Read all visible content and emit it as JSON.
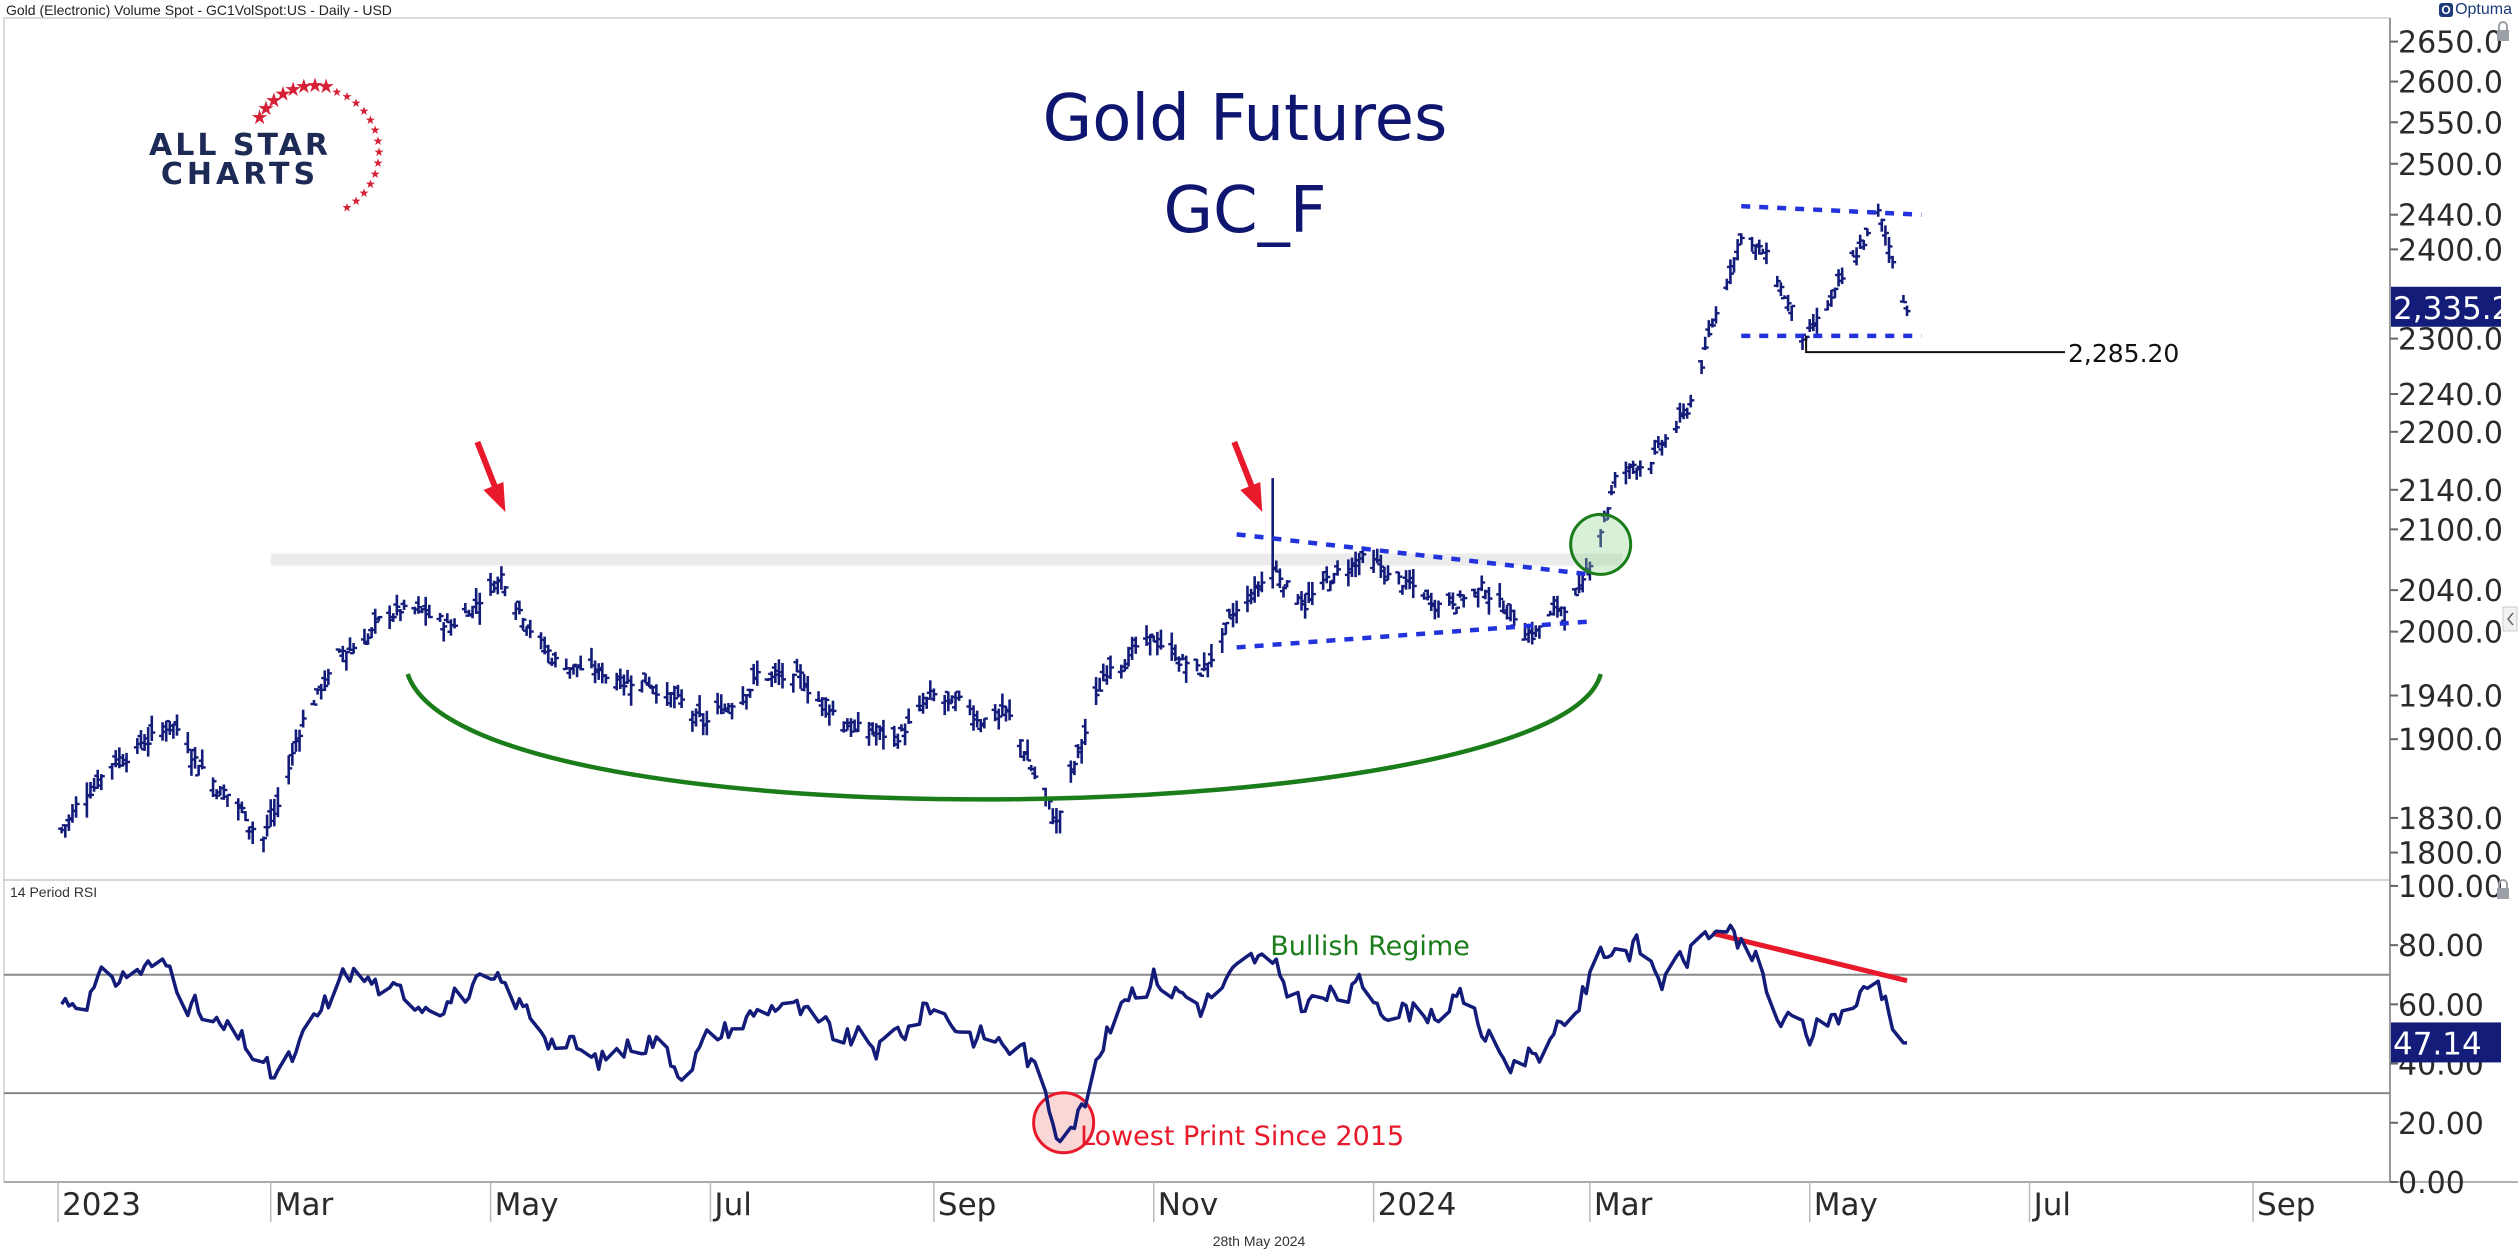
{
  "header": {
    "source": "Gold (Electronic) Volume Spot - GC1VolSpot:US - Daily - USD",
    "brand": "Optuma",
    "date": "28th May 2024"
  },
  "title": {
    "line1": "Gold Futures",
    "line2": "GC_F"
  },
  "logo": {
    "line1": "ALL STAR",
    "line2": "CHARTS"
  },
  "colors": {
    "price": "#141c7a",
    "accent": "#141c7a",
    "trend": "#2233dd",
    "arc": "#1a7d1a",
    "red": "#e8192b",
    "rsi_band": "#888888",
    "resistance": "#e6e6e6"
  },
  "chart_data": [
    {
      "type": "ohlc",
      "title": "Gold Futures GC_F",
      "y_ticks": [
        "2650.0",
        "2600.0",
        "2550.0",
        "2500.0",
        "2440.0",
        "2400.0",
        "2300.0",
        "2240.0",
        "2200.0",
        "2140.0",
        "2100.0",
        "2040.0",
        "2000.0",
        "1940.0",
        "1900.0",
        "1830.0",
        "1800.0"
      ],
      "ylim": [
        1780,
        2680
      ],
      "scale": "log",
      "last_value_label": "2,335.2",
      "price_level_label": "2,285.20",
      "close_series": {
        "x": [
          "2023-01-01",
          "2023-01-15",
          "2023-02-02",
          "2023-02-14",
          "2023-02-27",
          "2023-03-03",
          "2023-03-10",
          "2023-03-20",
          "2023-04-05",
          "2023-04-13",
          "2023-04-20",
          "2023-05-04",
          "2023-05-18",
          "2023-05-31",
          "2023-06-15",
          "2023-06-29",
          "2023-07-14",
          "2023-07-27",
          "2023-08-10",
          "2023-08-21",
          "2023-08-31",
          "2023-09-14",
          "2023-09-21",
          "2023-10-05",
          "2023-10-20",
          "2023-11-03",
          "2023-11-14",
          "2023-11-23",
          "2023-12-04",
          "2023-12-13",
          "2023-12-28",
          "2024-01-17",
          "2024-02-01",
          "2024-02-14",
          "2024-02-28",
          "2024-03-08",
          "2024-03-20",
          "2024-03-28",
          "2024-04-12",
          "2024-04-19",
          "2024-04-30",
          "2024-05-10",
          "2024-05-20",
          "2024-05-28"
        ],
        "y": [
          1815,
          1880,
          1915,
          1860,
          1815,
          1840,
          1920,
          1975,
          2020,
          2015,
          2005,
          2055,
          1975,
          1960,
          1955,
          1910,
          1960,
          1950,
          1910,
          1900,
          1935,
          1920,
          1925,
          1825,
          1975,
          1990,
          1960,
          2010,
          2060,
          2030,
          2070,
          2030,
          2040,
          2000,
          2040,
          2150,
          2180,
          2220,
          2420,
          2390,
          2295,
          2360,
          2440,
          2335
        ]
      },
      "annotations": {
        "resistance_level": 2070,
        "rising_support": {
          "x": [
            "2023-11-24",
            "2024-03-02"
          ],
          "y": [
            1985,
            2010
          ]
        },
        "falling_resistance": {
          "x": [
            "2023-11-24",
            "2024-03-02"
          ],
          "y": [
            2095,
            2055
          ]
        },
        "range_top": {
          "x": [
            "2024-04-12",
            "2024-06-01"
          ],
          "y": [
            2450,
            2440
          ]
        },
        "range_bottom": {
          "x": [
            "2024-04-12",
            "2024-06-01"
          ],
          "y": [
            2303,
            2303
          ]
        },
        "breakout_circle": {
          "x": "2024-03-04",
          "y": 2085
        },
        "peak_arrows": [
          {
            "x": "2023-05-04"
          },
          {
            "x": "2023-11-30"
          }
        ]
      }
    },
    {
      "type": "line",
      "title": "14 Period RSI",
      "y_ticks": [
        "100.00",
        "80.00",
        "60.00",
        "40.00",
        "20.00",
        "0.00"
      ],
      "ylim": [
        0,
        102
      ],
      "band_levels": [
        70,
        30
      ],
      "last_value_label": "47.14",
      "annotations": {
        "bullish_label": "Bullish Regime",
        "lowest_label": "Lowest Print Since 2015",
        "divergence": {
          "x": [
            "2024-04-04",
            "2024-05-28"
          ],
          "y": [
            84,
            68
          ]
        },
        "low_circle": {
          "x": "2023-10-07",
          "y": 20
        }
      },
      "series": [
        {
          "x": [
            "2023-01-01",
            "2023-01-23",
            "2023-02-02",
            "2023-02-10",
            "2023-02-23",
            "2023-03-01",
            "2023-03-08",
            "2023-03-14",
            "2023-03-23",
            "2023-04-05",
            "2023-04-19",
            "2023-05-04",
            "2023-05-18",
            "2023-05-30",
            "2023-06-14",
            "2023-06-22",
            "2023-07-06",
            "2023-07-21",
            "2023-08-01",
            "2023-08-18",
            "2023-08-31",
            "2023-09-12",
            "2023-09-26",
            "2023-10-05",
            "2023-10-12",
            "2023-10-24",
            "2023-11-01",
            "2023-11-14",
            "2023-11-30",
            "2023-12-13",
            "2023-12-28",
            "2024-01-10",
            "2024-01-26",
            "2024-02-07",
            "2024-02-22",
            "2024-03-06",
            "2024-03-13",
            "2024-03-22",
            "2024-04-04",
            "2024-04-16",
            "2024-04-22",
            "2024-05-01",
            "2024-05-08",
            "2024-05-20",
            "2024-05-28"
          ],
          "y": [
            60,
            72,
            72,
            55,
            45,
            35,
            42,
            55,
            72,
            62,
            63,
            65,
            50,
            40,
            50,
            40,
            52,
            62,
            50,
            45,
            60,
            50,
            45,
            20,
            25,
            65,
            70,
            60,
            75,
            60,
            65,
            58,
            60,
            40,
            50,
            80,
            80,
            68,
            86,
            74,
            55,
            50,
            56,
            68,
            47
          ]
        }
      ]
    }
  ],
  "x_axis": {
    "labels": [
      "2023",
      "Mar",
      "May",
      "Jul",
      "Sep",
      "Nov",
      "2024",
      "Mar",
      "May",
      "Jul",
      "Sep"
    ]
  }
}
